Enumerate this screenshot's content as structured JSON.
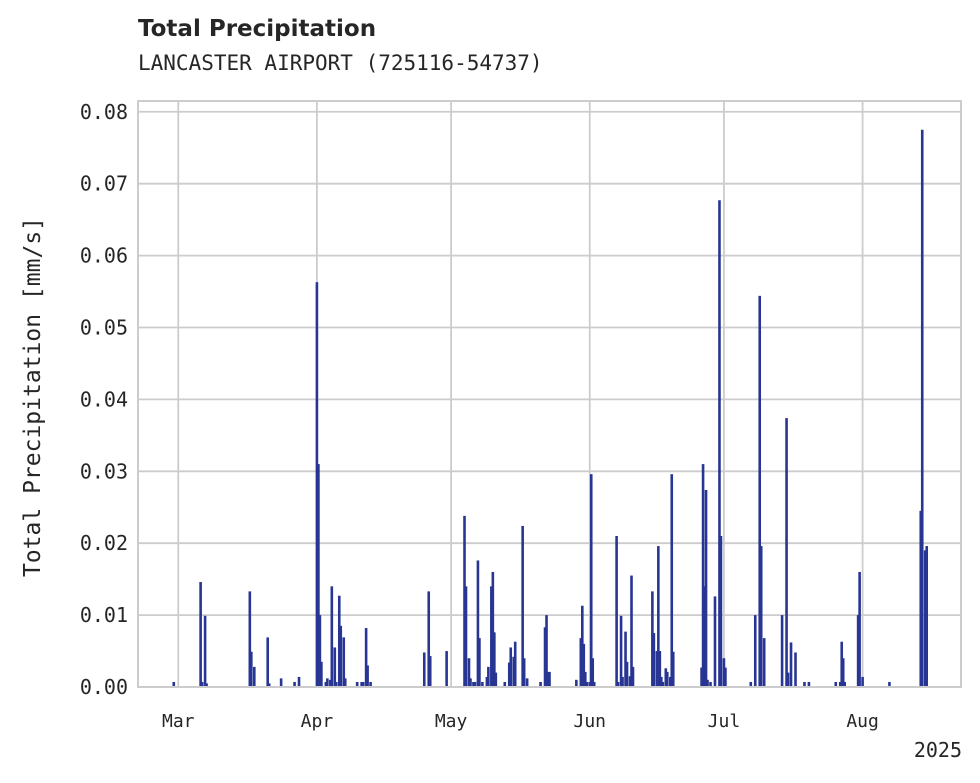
{
  "chart_data": {
    "type": "bar",
    "title": "Total Precipitation",
    "subtitle": "LANCASTER AIRPORT (725116-54737)",
    "xlabel": "",
    "ylabel": "Total Precipitation [mm/s]",
    "year_label": "2025",
    "xlim": [
      "2025-02-20",
      "2025-08-23"
    ],
    "ylim": [
      0,
      0.0815
    ],
    "y_ticks": [
      "0.00",
      "0.01",
      "0.02",
      "0.03",
      "0.04",
      "0.05",
      "0.06",
      "0.07",
      "0.08"
    ],
    "x_ticks": [
      {
        "date": "2025-03-01",
        "label": "Mar"
      },
      {
        "date": "2025-04-01",
        "label": "Apr"
      },
      {
        "date": "2025-05-01",
        "label": "May"
      },
      {
        "date": "2025-06-01",
        "label": "Jun"
      },
      {
        "date": "2025-07-01",
        "label": "Jul"
      },
      {
        "date": "2025-08-01",
        "label": "Aug"
      }
    ],
    "grid": true,
    "bar_color": "#283593",
    "series": [
      {
        "points": [
          [
            "2025-02-28",
            0.0007
          ],
          [
            "2025-03-06",
            0.0146
          ],
          [
            "2025-03-06",
            0.0007
          ],
          [
            "2025-03-07",
            0.0099
          ],
          [
            "2025-03-07",
            0.0005
          ],
          [
            "2025-03-17",
            0.0133
          ],
          [
            "2025-03-17",
            0.0049
          ],
          [
            "2025-03-18",
            0.0028
          ],
          [
            "2025-03-21",
            0.0069
          ],
          [
            "2025-03-21",
            0.0005
          ],
          [
            "2025-03-24",
            0.0012
          ],
          [
            "2025-03-27",
            0.0007
          ],
          [
            "2025-03-28",
            0.0014
          ],
          [
            "2025-04-01",
            0.0563
          ],
          [
            "2025-04-01",
            0.031
          ],
          [
            "2025-04-01",
            0.01
          ],
          [
            "2025-04-01",
            0.0035
          ],
          [
            "2025-04-03",
            0.0007
          ],
          [
            "2025-04-03",
            0.0012
          ],
          [
            "2025-04-04",
            0.001
          ],
          [
            "2025-04-04",
            0.014
          ],
          [
            "2025-04-05",
            0.0055
          ],
          [
            "2025-04-05",
            0.0007
          ],
          [
            "2025-04-06",
            0.0127
          ],
          [
            "2025-04-06",
            0.0085
          ],
          [
            "2025-04-07",
            0.0069
          ],
          [
            "2025-04-07",
            0.0012
          ],
          [
            "2025-04-10",
            0.0007
          ],
          [
            "2025-04-11",
            0.0007
          ],
          [
            "2025-04-11",
            0.0007
          ],
          [
            "2025-04-12",
            0.0082
          ],
          [
            "2025-04-12",
            0.003
          ],
          [
            "2025-04-13",
            0.0007
          ],
          [
            "2025-04-25",
            0.0048
          ],
          [
            "2025-04-26",
            0.0133
          ],
          [
            "2025-04-26",
            0.0043
          ],
          [
            "2025-04-30",
            0.005
          ],
          [
            "2025-05-04",
            0.0238
          ],
          [
            "2025-05-04",
            0.014
          ],
          [
            "2025-05-05",
            0.004
          ],
          [
            "2025-05-05",
            0.0012
          ],
          [
            "2025-05-06",
            0.0007
          ],
          [
            "2025-05-06",
            0.0007
          ],
          [
            "2025-05-07",
            0.0176
          ],
          [
            "2025-05-07",
            0.0068
          ],
          [
            "2025-05-08",
            0.0007
          ],
          [
            "2025-05-09",
            0.0014
          ],
          [
            "2025-05-09",
            0.0028
          ],
          [
            "2025-05-10",
            0.014
          ],
          [
            "2025-05-10",
            0.016
          ],
          [
            "2025-05-10",
            0.0076
          ],
          [
            "2025-05-11",
            0.002
          ],
          [
            "2025-05-13",
            0.0007
          ],
          [
            "2025-05-14",
            0.0034
          ],
          [
            "2025-05-14",
            0.0055
          ],
          [
            "2025-05-15",
            0.0042
          ],
          [
            "2025-05-15",
            0.0063
          ],
          [
            "2025-05-17",
            0.0224
          ],
          [
            "2025-05-17",
            0.004
          ],
          [
            "2025-05-18",
            0.0012
          ],
          [
            "2025-05-21",
            0.0007
          ],
          [
            "2025-05-22",
            0.0083
          ],
          [
            "2025-05-22",
            0.01
          ],
          [
            "2025-05-22",
            0.0021
          ],
          [
            "2025-05-23",
            0.0021
          ],
          [
            "2025-05-29",
            0.001
          ],
          [
            "2025-05-30",
            0.0068
          ],
          [
            "2025-05-30",
            0.0113
          ],
          [
            "2025-05-30",
            0.006
          ],
          [
            "2025-05-31",
            0.0021
          ],
          [
            "2025-05-31",
            0.0007
          ],
          [
            "2025-06-01",
            0.0007
          ],
          [
            "2025-06-01",
            0.0296
          ],
          [
            "2025-06-01",
            0.004
          ],
          [
            "2025-06-02",
            0.0007
          ],
          [
            "2025-06-07",
            0.021
          ],
          [
            "2025-06-07",
            0.0007
          ],
          [
            "2025-06-08",
            0.0099
          ],
          [
            "2025-06-08",
            0.0014
          ],
          [
            "2025-06-09",
            0.0077
          ],
          [
            "2025-06-09",
            0.0035
          ],
          [
            "2025-06-10",
            0.0015
          ],
          [
            "2025-06-10",
            0.0155
          ],
          [
            "2025-06-10",
            0.0028
          ],
          [
            "2025-06-15",
            0.0133
          ],
          [
            "2025-06-15",
            0.0075
          ],
          [
            "2025-06-16",
            0.005
          ],
          [
            "2025-06-16",
            0.0196
          ],
          [
            "2025-06-16",
            0.005
          ],
          [
            "2025-06-17",
            0.0014
          ],
          [
            "2025-06-17",
            0.0007
          ],
          [
            "2025-06-18",
            0.0026
          ],
          [
            "2025-06-18",
            0.0021
          ],
          [
            "2025-06-19",
            0.0014
          ],
          [
            "2025-06-19",
            0.0296
          ],
          [
            "2025-06-19",
            0.0049
          ],
          [
            "2025-06-26",
            0.0027
          ],
          [
            "2025-06-26",
            0.031
          ],
          [
            "2025-06-26",
            0.014
          ],
          [
            "2025-06-27",
            0.0274
          ],
          [
            "2025-06-27",
            0.001
          ],
          [
            "2025-06-28",
            0.0007
          ],
          [
            "2025-06-29",
            0.0126
          ],
          [
            "2025-06-30",
            0.0677
          ],
          [
            "2025-06-30",
            0.021
          ],
          [
            "2025-07-01",
            0.004
          ],
          [
            "2025-07-01",
            0.0027
          ],
          [
            "2025-07-07",
            0.0007
          ],
          [
            "2025-07-08",
            0.01
          ],
          [
            "2025-07-09",
            0.0544
          ],
          [
            "2025-07-09",
            0.0196
          ],
          [
            "2025-07-10",
            0.0068
          ],
          [
            "2025-07-14",
            0.01
          ],
          [
            "2025-07-15",
            0.0374
          ],
          [
            "2025-07-15",
            0.002
          ],
          [
            "2025-07-16",
            0.0062
          ],
          [
            "2025-07-17",
            0.0048
          ],
          [
            "2025-07-19",
            0.0007
          ],
          [
            "2025-07-20",
            0.0007
          ],
          [
            "2025-07-26",
            0.0007
          ],
          [
            "2025-07-27",
            0.0007
          ],
          [
            "2025-07-27",
            0.0063
          ],
          [
            "2025-07-27",
            0.004
          ],
          [
            "2025-07-28",
            0.0007
          ],
          [
            "2025-07-31",
            0.01
          ],
          [
            "2025-07-31",
            0.016
          ],
          [
            "2025-08-01",
            0.0014
          ],
          [
            "2025-08-07",
            0.0007
          ],
          [
            "2025-08-14",
            0.0245
          ],
          [
            "2025-08-14",
            0.0775
          ],
          [
            "2025-08-15",
            0.019
          ],
          [
            "2025-08-15",
            0.0196
          ]
        ]
      }
    ]
  }
}
